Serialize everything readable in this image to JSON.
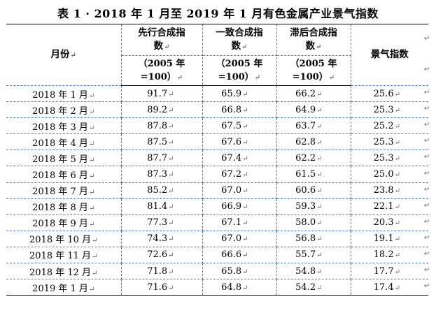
{
  "title": "表 1 · 2018 年 1 月至 2019 年 1 月有色金属产业景气指数",
  "cell_mark": "↵",
  "headers": {
    "month": "月份",
    "leading_line1": "先行合成指",
    "leading_line2": "数",
    "coincident_line1": "一致合成指",
    "coincident_line2": "数",
    "lagging_line1": "滞后合成指",
    "lagging_line2": "数",
    "base_line1": "（2005 年",
    "base_line2": "=100）",
    "index": "景气指数"
  },
  "rows": [
    {
      "month": "2018 年 1 月",
      "leading": "91.7",
      "coincident": "65.9",
      "lagging": "66.2",
      "index": "25.6"
    },
    {
      "month": "2018 年 2 月",
      "leading": "89.2",
      "coincident": "66.8",
      "lagging": "64.9",
      "index": "25.3"
    },
    {
      "month": "2018 年 3 月",
      "leading": "87.8",
      "coincident": "67.5",
      "lagging": "63.7",
      "index": "25.2"
    },
    {
      "month": "2018 年 4 月",
      "leading": "87.5",
      "coincident": "67.6",
      "lagging": "62.8",
      "index": "25.3"
    },
    {
      "month": "2018 年 5 月",
      "leading": "87.7",
      "coincident": "67.4",
      "lagging": "62.2",
      "index": "25.3"
    },
    {
      "month": "2018 年 6 月",
      "leading": "87.3",
      "coincident": "67.2",
      "lagging": "61.5",
      "index": "25.0"
    },
    {
      "month": "2018 年 7 月",
      "leading": "85.2",
      "coincident": "67.0",
      "lagging": "60.6",
      "index": "23.8"
    },
    {
      "month": "2018 年 8 月",
      "leading": "81.4",
      "coincident": "66.9",
      "lagging": "59.3",
      "index": "22.1"
    },
    {
      "month": "2018 年 9 月",
      "leading": "77.3",
      "coincident": "67.1",
      "lagging": "58.0",
      "index": "20.3"
    },
    {
      "month": "2018 年 10 月",
      "leading": "74.3",
      "coincident": "67.0",
      "lagging": "56.8",
      "index": "19.1"
    },
    {
      "month": "2018 年 11 月",
      "leading": "72.6",
      "coincident": "66.6",
      "lagging": "55.7",
      "index": "18.2"
    },
    {
      "month": "2018 年 12 月",
      "leading": "71.8",
      "coincident": "65.8",
      "lagging": "54.8",
      "index": "17.7"
    },
    {
      "month": "2019 年 1 月",
      "leading": "71.6",
      "coincident": "64.8",
      "lagging": "54.2",
      "index": "17.4"
    }
  ]
}
